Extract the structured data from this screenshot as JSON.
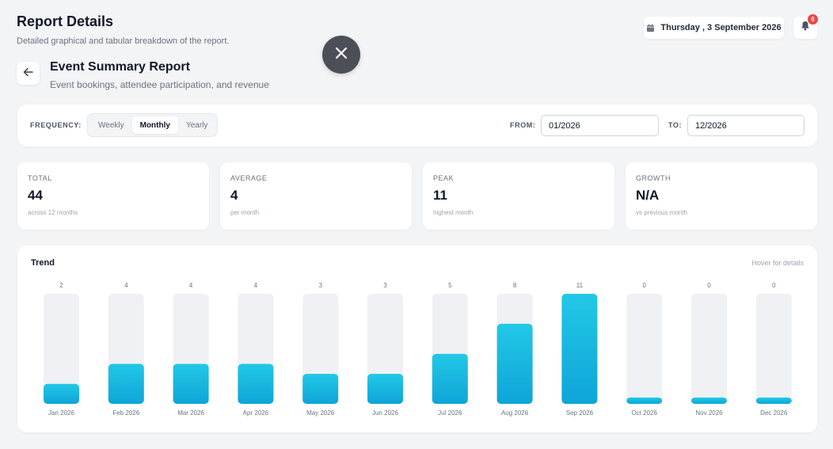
{
  "header": {
    "title": "Report Details",
    "subtitle": "Detailed graphical and tabular breakdown of the report."
  },
  "date_chip": {
    "label": "Thursday , 3 September 2026",
    "icon": "calendar-icon"
  },
  "notifications": {
    "count": "6",
    "icon": "bell-icon"
  },
  "close_button": {
    "icon": "close-icon"
  },
  "report": {
    "back_icon": "arrow-left-icon",
    "title": "Event Summary Report",
    "subtitle": "Event bookings, attendee participation, and revenue"
  },
  "filters": {
    "frequency_label": "FREQUENCY:",
    "options": [
      "Weekly",
      "Monthly",
      "Yearly"
    ],
    "selected": "Monthly",
    "from_label": "FROM:",
    "from_value": "01/2026",
    "to_label": "TO:",
    "to_value": "12/2026"
  },
  "stats": [
    {
      "label": "TOTAL",
      "value": "44",
      "note": "across 12 months"
    },
    {
      "label": "AVERAGE",
      "value": "4",
      "note": "per month"
    },
    {
      "label": "PEAK",
      "value": "11",
      "note": "highest month"
    },
    {
      "label": "GROWTH",
      "value": "N/A",
      "note": "vs previous month"
    }
  ],
  "trend": {
    "title": "Trend",
    "hint": "Hover for details"
  },
  "colors": {
    "accent_top": "#22c8e6",
    "accent_bottom": "#0ea5d8",
    "track": "#f0f1f4",
    "badge": "#ef4444"
  },
  "chart_data": {
    "type": "bar",
    "categories": [
      "Jan 2026",
      "Feb 2026",
      "Mar 2026",
      "Apr 2026",
      "May 2026",
      "Jun 2026",
      "Jul 2026",
      "Aug 2026",
      "Sep 2026",
      "Oct 2026",
      "Nov 2026",
      "Dec 2026"
    ],
    "values": [
      2,
      4,
      4,
      4,
      3,
      3,
      5,
      8,
      11,
      0,
      0,
      0
    ],
    "ylim": [
      0,
      11
    ],
    "title": "Trend",
    "xlabel": "",
    "ylabel": ""
  }
}
